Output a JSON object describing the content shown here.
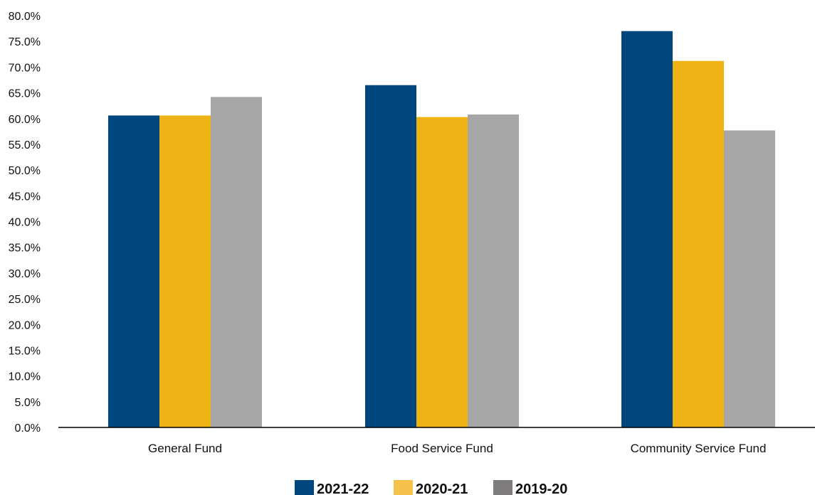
{
  "chart_data": {
    "type": "bar",
    "title": "",
    "xlabel": "",
    "ylabel": "",
    "categories": [
      "General Fund",
      "Food Service Fund",
      "Community Service Fund"
    ],
    "series": [
      {
        "name": "2021-22",
        "color": "#00467f",
        "legend_color": "#00467f",
        "values": [
          60.6,
          66.5,
          77.0
        ]
      },
      {
        "name": "2020-21",
        "color": "#efb315",
        "legend_color": "#f6c14a",
        "values": [
          60.6,
          60.3,
          71.2
        ]
      },
      {
        "name": "2019-20",
        "color": "#a6a6a6",
        "legend_color": "#7d7b7b",
        "values": [
          64.2,
          60.8,
          57.7
        ]
      }
    ],
    "ylim": [
      0,
      80
    ],
    "yticks": [
      "0.0%",
      "5.0%",
      "10.0%",
      "15.0%",
      "20.0%",
      "25.0%",
      "30.0%",
      "35.0%",
      "40.0%",
      "45.0%",
      "50.0%",
      "55.0%",
      "60.0%",
      "65.0%",
      "70.0%",
      "75.0%",
      "80.0%"
    ],
    "grid": false,
    "legend_position": "bottom-center"
  }
}
